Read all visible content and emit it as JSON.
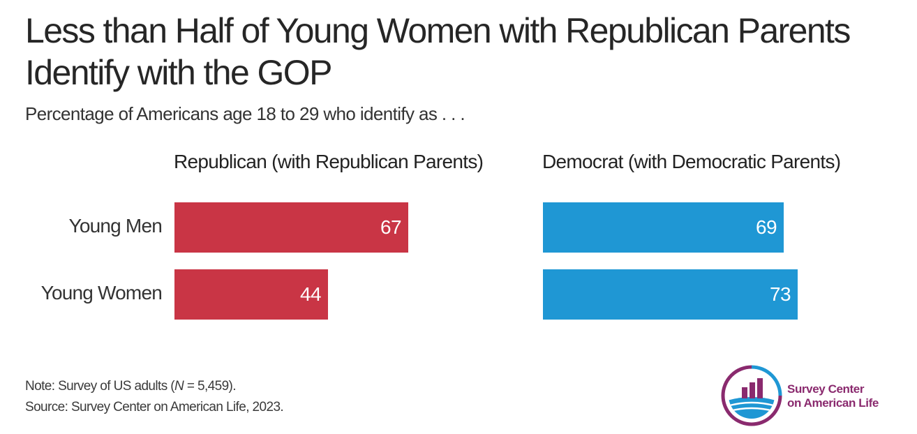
{
  "title": "Less than Half of Young Women with Republican Parents Identify with the GOP",
  "subtitle": "Percentage of Americans age 18 to 29 who identify as . . .",
  "note": "Note: Survey of US adults (N = 5,459).",
  "note_parts": {
    "prefix": "Note: Survey of US adults (",
    "n": "N",
    "suffix": " = 5,459)."
  },
  "source": "Source: Survey Center on American Life, 2023.",
  "logo": {
    "line1": "Survey Center",
    "line2": "on American Life",
    "icon": "bar-chart-globe-logo-icon"
  },
  "colors": {
    "republican": "#c93545",
    "democrat": "#1f97d4",
    "logo": "#8a2a6e"
  },
  "chart_data": {
    "type": "bar",
    "orientation": "horizontal",
    "categories": [
      "Young Men",
      "Young Women"
    ],
    "series": [
      {
        "name": "Republican (with Republican Parents)",
        "values": [
          67,
          44
        ]
      },
      {
        "name": "Democrat (with Democratic Parents)",
        "values": [
          69,
          73
        ]
      }
    ],
    "xlim": [
      0,
      100
    ],
    "grid": false,
    "data_labels": true
  }
}
